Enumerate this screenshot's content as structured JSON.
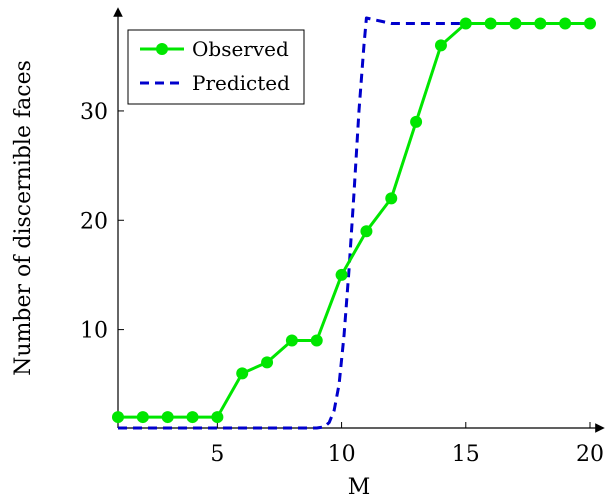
{
  "chart_data": {
    "type": "line",
    "xlabel": "M",
    "ylabel": "Number of discernible faces",
    "xlim": [
      1,
      20
    ],
    "ylim": [
      1,
      38.5
    ],
    "xticks": [
      5,
      10,
      15,
      20
    ],
    "yticks": [
      10,
      20,
      30
    ],
    "grid": false,
    "legend_position": "top-left",
    "series": [
      {
        "name": "Observed",
        "color": "#00e600",
        "style": "solid-with-markers",
        "x": [
          1,
          2,
          3,
          4,
          5,
          6,
          7,
          8,
          9,
          10,
          11,
          12,
          13,
          14,
          15,
          16,
          17,
          18,
          19,
          20
        ],
        "y": [
          2,
          2,
          2,
          2,
          2,
          6,
          7,
          9,
          9,
          15,
          19,
          22,
          29,
          36,
          38,
          38,
          38,
          38,
          38,
          38
        ]
      },
      {
        "name": "Predicted",
        "color": "#0000cc",
        "style": "dashed",
        "x": [
          1,
          9,
          9.3,
          9.5,
          9.7,
          9.9,
          10.1,
          10.3,
          10.5,
          10.7,
          10.9,
          11.0,
          12.0,
          20.0
        ],
        "y": [
          1,
          1,
          1.1,
          1.5,
          2.6,
          5.0,
          9.5,
          15.5,
          22.5,
          30.0,
          36.0,
          38.5,
          38,
          38
        ]
      }
    ]
  }
}
